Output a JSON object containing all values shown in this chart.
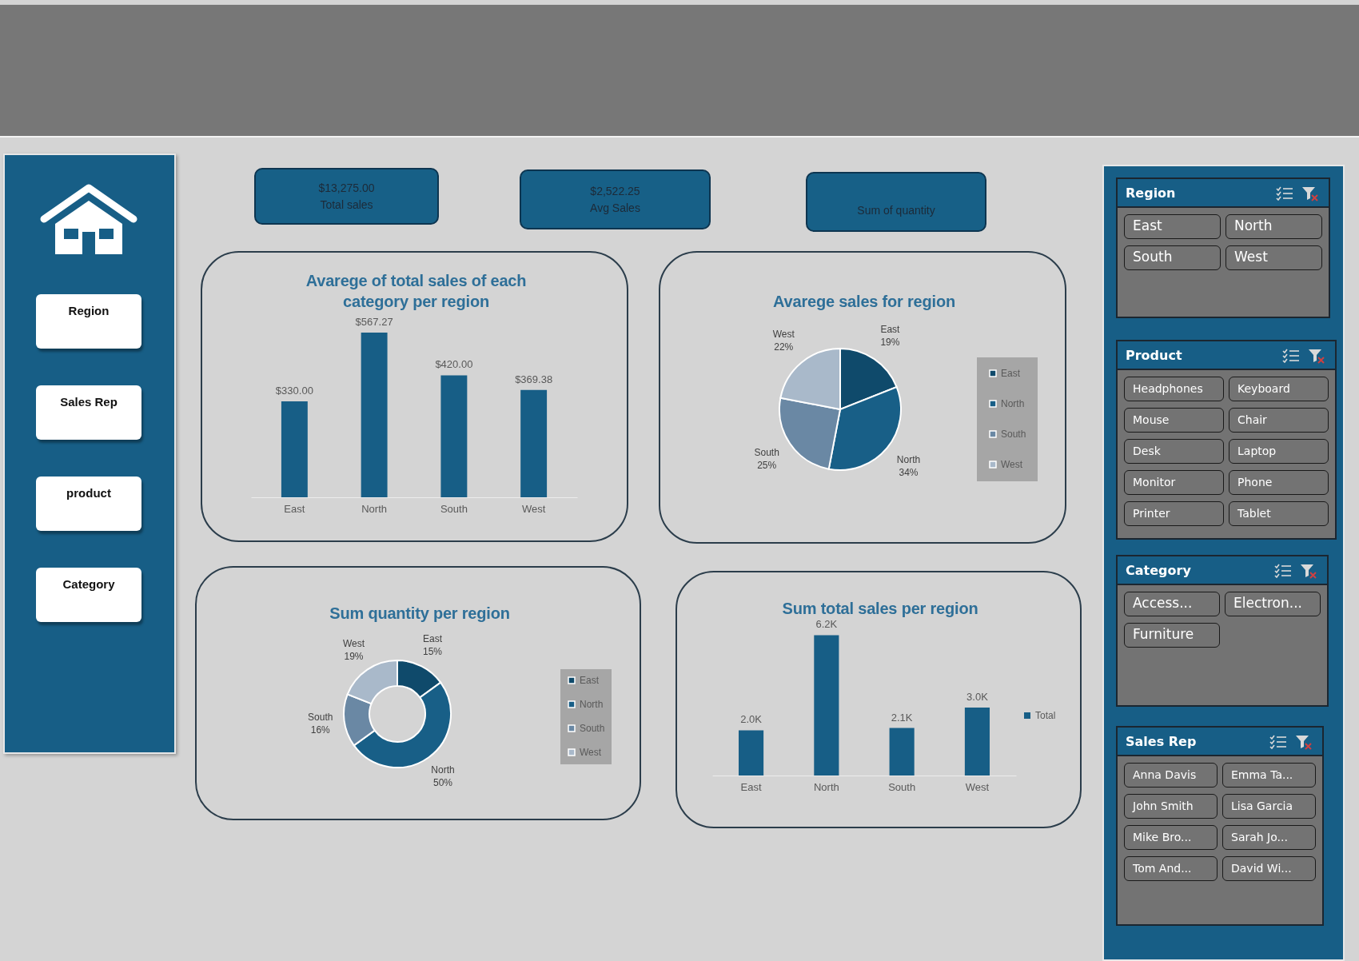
{
  "chart_data": [
    {
      "type": "other",
      "annotations": [
        "Region",
        "Sales Rep",
        "product",
        "Category"
      ]
    },
    {
      "type": "other",
      "annotations": [
        "$13,275.00",
        "Total sales"
      ]
    },
    {
      "type": "other",
      "annotations": [
        "$2,522.25",
        "Avg Sales"
      ]
    },
    {
      "type": "other",
      "annotations": [
        "Sum of quantity"
      ]
    },
    {
      "type": "bar",
      "title": "Avarege of total sales of each category per region",
      "categories": [
        "East",
        "North",
        "South",
        "West"
      ],
      "values": [
        330,
        567.27,
        420,
        369.38
      ],
      "color": "#175e86",
      "value_labels": [
        "$330.00",
        "$567.27",
        "$420.00",
        "$369.38"
      ],
      "tick_labels": "x"
    },
    {
      "type": "pie",
      "title": "Avarege sales for region",
      "categories": [
        "East",
        "North",
        "South",
        "West"
      ],
      "values": [
        19,
        34,
        25,
        22
      ],
      "colors": [
        "#0f4a6b",
        "#185f87",
        "#6a88a4",
        "#a9b9ca"
      ],
      "value_labels": [
        "19%",
        "34%",
        "25%",
        "22%"
      ],
      "legend": "right"
    },
    {
      "type": "donut",
      "title": "Sum quantity per region",
      "categories": [
        "East",
        "North",
        "South",
        "West"
      ],
      "values": [
        15,
        50,
        16,
        19
      ],
      "colors": [
        "#0f4a6b",
        "#185f87",
        "#6a88a4",
        "#a9b9ca"
      ],
      "value_labels": [
        "15%",
        "50%",
        "16%",
        "19%"
      ],
      "legend": "right"
    },
    {
      "type": "bar",
      "title": "Sum total sales per region",
      "categories": [
        "East",
        "North",
        "South",
        "West"
      ],
      "series": [
        {
          "name": "Total",
          "color": "#175e86",
          "values": [
            2000,
            6200,
            2100,
            3000
          ],
          "value_labels": [
            "2.0K",
            "6.2K",
            "2.1K",
            "3.0K"
          ]
        }
      ],
      "legend": "right",
      "tick_labels": "x"
    },
    {
      "type": "other",
      "title": "Region",
      "annotations": [
        "East",
        "North",
        "South",
        "West"
      ]
    },
    {
      "type": "other",
      "title": "Product",
      "annotations": [
        "Headphones",
        "Keyboard",
        "Mouse",
        "Chair",
        "Desk",
        "Laptop",
        "Monitor",
        "Phone",
        "Printer",
        "Tablet"
      ]
    },
    {
      "type": "other",
      "title": "Category",
      "annotations": [
        "Access...",
        "Electron...",
        "Furniture"
      ]
    },
    {
      "type": "other",
      "title": "Sales Rep",
      "annotations": [
        "Anna Davis",
        "Emma Ta...",
        "John Smith",
        "Lisa Garcia",
        "Mike Bro...",
        "Sarah Jo...",
        "Tom And...",
        "David Wi..."
      ]
    }
  ]
}
